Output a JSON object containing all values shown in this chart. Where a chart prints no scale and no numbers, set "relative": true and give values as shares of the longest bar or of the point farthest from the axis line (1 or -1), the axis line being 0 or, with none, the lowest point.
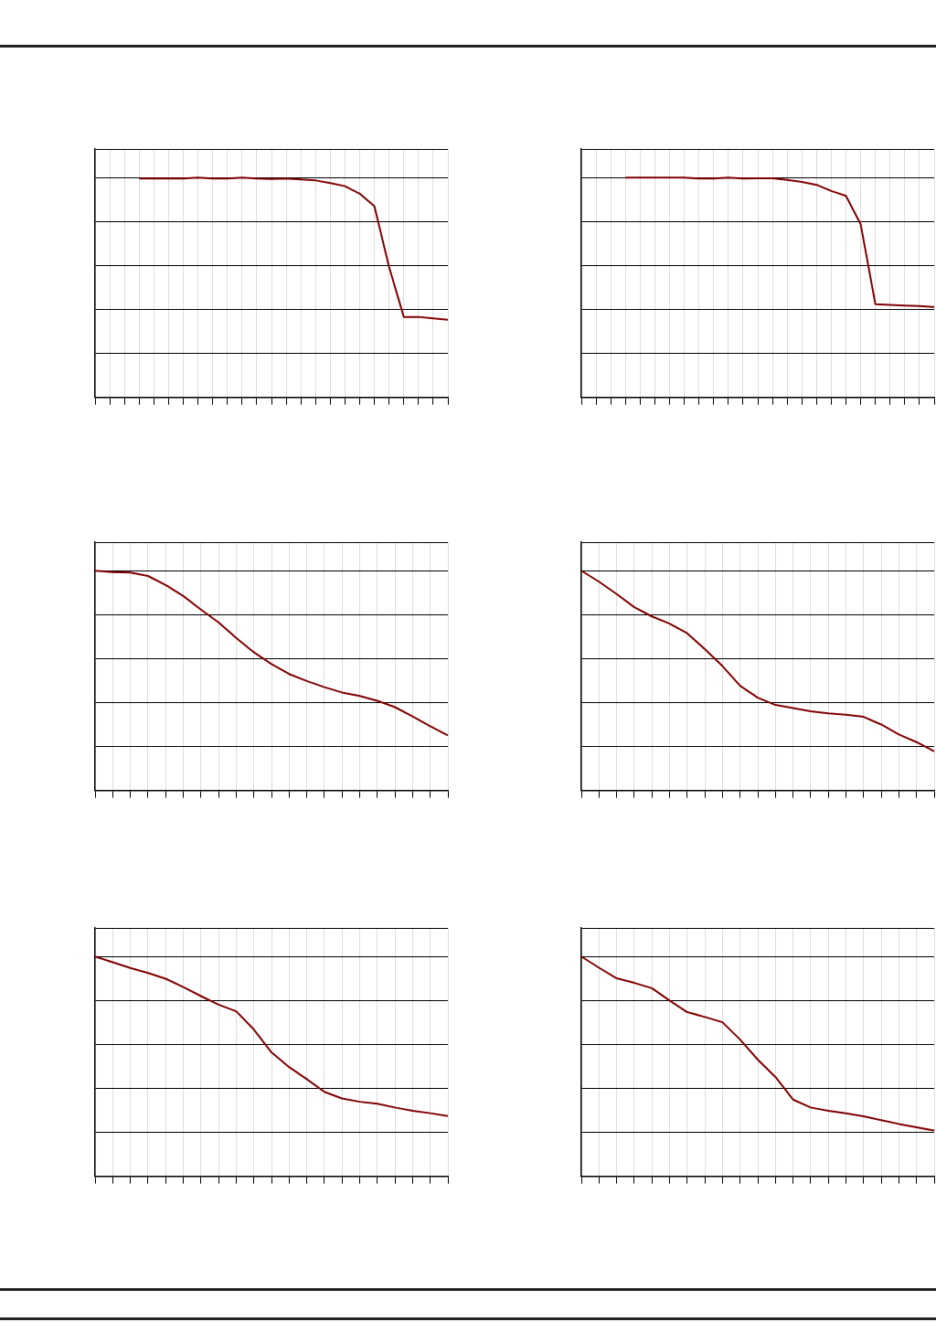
{
  "chart_data": [
    {
      "type": "line",
      "relative": true,
      "grid": true,
      "legend": false,
      "categories": [
        null,
        null,
        null,
        null,
        null,
        null,
        null,
        null,
        null,
        null,
        null,
        null,
        null,
        null,
        null,
        null,
        null,
        null,
        null,
        null,
        null,
        null,
        null,
        null,
        null
      ],
      "series": [
        {
          "color": "#800000",
          "values": [
            null,
            null,
            null,
            0.996,
            0.996,
            0.996,
            0.996,
            1,
            0.996,
            0.996,
            1,
            0.996,
            0.994,
            0.996,
            0.992,
            0.987,
            0.975,
            0.961,
            0.927,
            0.87,
            0.593,
            0.366,
            0.366,
            0.359,
            0.353
          ]
        }
      ]
    },
    {
      "type": "line",
      "relative": true,
      "grid": true,
      "legend": false,
      "categories": [
        null,
        null,
        null,
        null,
        null,
        null,
        null,
        null,
        null,
        null,
        null,
        null,
        null,
        null,
        null,
        null,
        null,
        null,
        null,
        null,
        null,
        null,
        null,
        null,
        null
      ],
      "series": [
        {
          "color": "#800000",
          "values": [
            null,
            null,
            null,
            1,
            1,
            1,
            1,
            1,
            0.996,
            0.996,
            1,
            0.996,
            0.997,
            0.997,
            0.99,
            0.98,
            0.967,
            0.939,
            0.917,
            0.788,
            0.424,
            0.421,
            0.418,
            0.415,
            0.411
          ]
        }
      ]
    },
    {
      "type": "line",
      "relative": true,
      "grid": true,
      "legend": false,
      "categories": [
        null,
        null,
        null,
        null,
        null,
        null,
        null,
        null,
        null,
        null,
        null,
        null,
        null,
        null,
        null,
        null,
        null,
        null,
        null,
        null,
        null
      ],
      "series": [
        {
          "color": "#800000",
          "values": [
            1,
            0.994,
            0.992,
            0.976,
            0.935,
            0.885,
            0.823,
            0.765,
            0.694,
            0.629,
            0.575,
            0.53,
            0.498,
            0.47,
            0.446,
            0.43,
            0.408,
            0.379,
            0.337,
            0.292,
            0.251
          ]
        }
      ]
    },
    {
      "type": "line",
      "relative": true,
      "grid": true,
      "legend": false,
      "categories": [
        null,
        null,
        null,
        null,
        null,
        null,
        null,
        null,
        null,
        null,
        null,
        null,
        null,
        null,
        null,
        null,
        null,
        null,
        null,
        null,
        null
      ],
      "series": [
        {
          "color": "#800000",
          "values": [
            1,
            0.95,
            0.894,
            0.834,
            0.792,
            0.759,
            0.715,
            0.643,
            0.566,
            0.476,
            0.422,
            0.389,
            0.375,
            0.36,
            0.351,
            0.345,
            0.335,
            0.3,
            0.255,
            0.22,
            0.178
          ]
        }
      ]
    },
    {
      "type": "line",
      "relative": true,
      "grid": true,
      "legend": false,
      "categories": [
        null,
        null,
        null,
        null,
        null,
        null,
        null,
        null,
        null,
        null,
        null,
        null,
        null,
        null,
        null,
        null,
        null,
        null,
        null,
        null,
        null
      ],
      "series": [
        {
          "color": "#800000",
          "values": [
            1,
            0.974,
            0.948,
            0.925,
            0.899,
            0.861,
            0.82,
            0.781,
            0.751,
            0.668,
            0.564,
            0.497,
            0.442,
            0.384,
            0.354,
            0.339,
            0.33,
            0.313,
            0.298,
            0.287,
            0.274
          ]
        }
      ]
    },
    {
      "type": "line",
      "relative": true,
      "grid": true,
      "legend": false,
      "categories": [
        null,
        null,
        null,
        null,
        null,
        null,
        null,
        null,
        null,
        null,
        null,
        null,
        null,
        null,
        null,
        null,
        null,
        null,
        null,
        null,
        null
      ],
      "series": [
        {
          "color": "#800000",
          "values": [
            1,
            0.949,
            0.901,
            0.88,
            0.856,
            0.8,
            0.747,
            0.725,
            0.701,
            0.622,
            0.531,
            0.452,
            0.349,
            0.313,
            0.298,
            0.286,
            0.273,
            0.255,
            0.238,
            0.223,
            0.208
          ]
        }
      ]
    }
  ]
}
